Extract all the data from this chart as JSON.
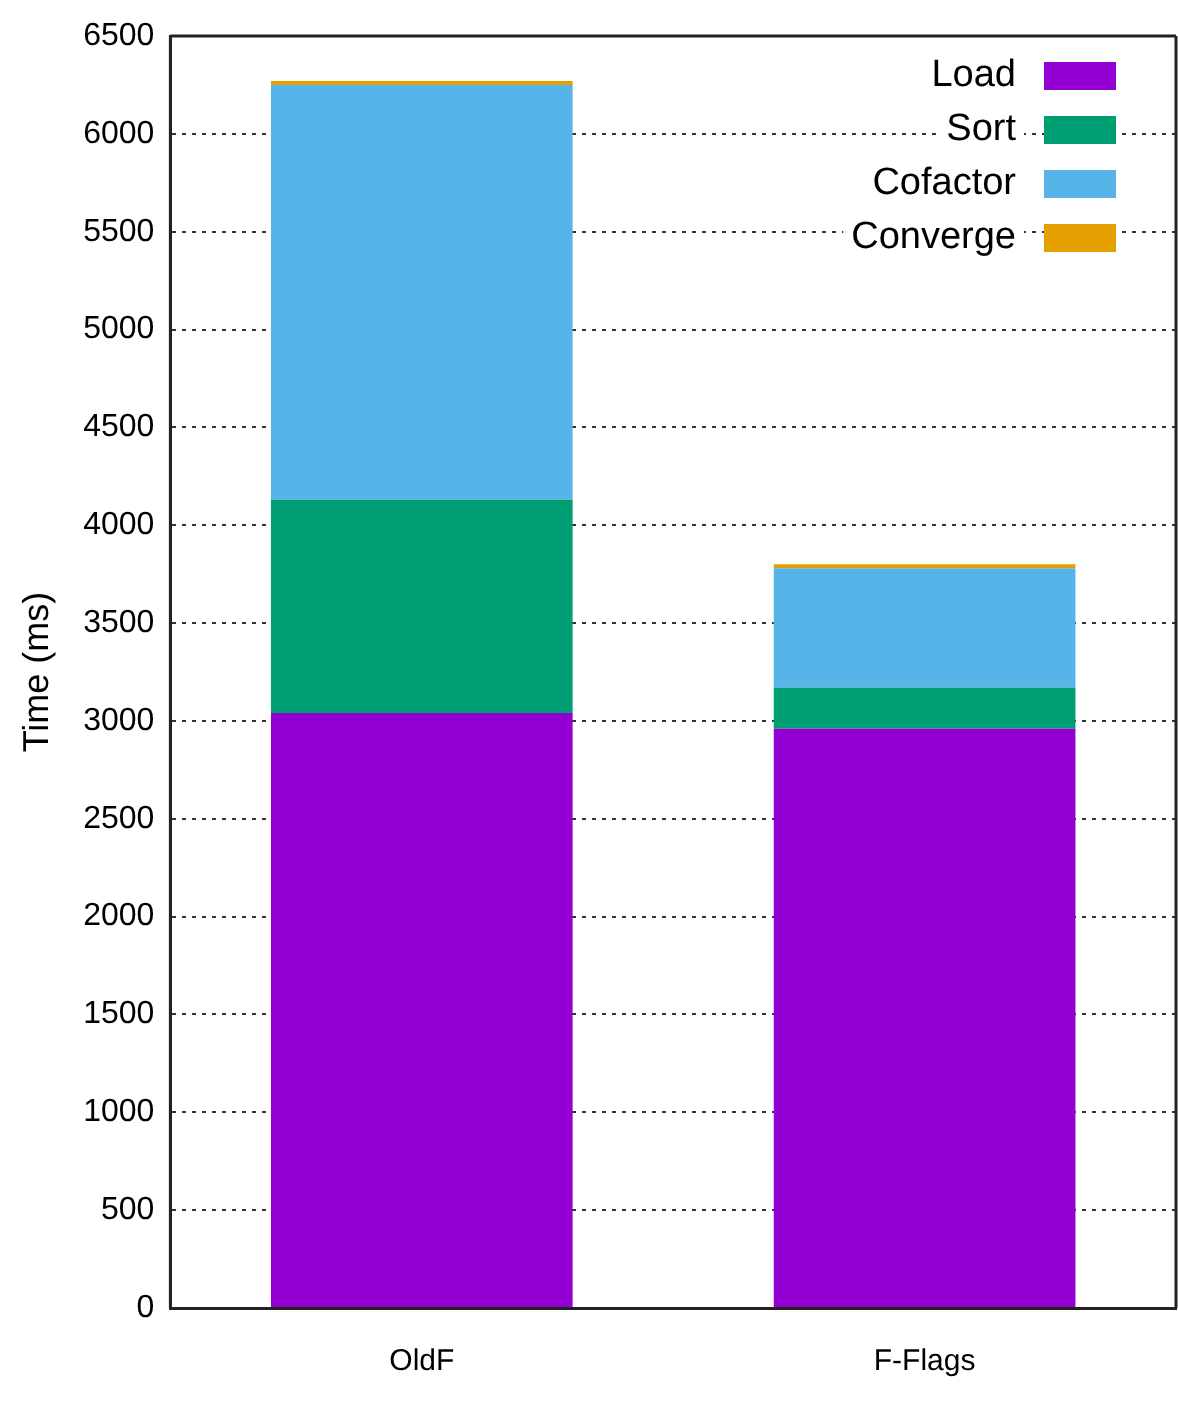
{
  "chart_data": {
    "type": "bar",
    "ylabel": "Time (ms)",
    "categories": [
      "OldF",
      "F-Flags"
    ],
    "stacked": true,
    "series": [
      {
        "name": "Load",
        "color": "#9400d3",
        "values": [
          3040,
          2960
        ]
      },
      {
        "name": "Sort",
        "color": "#009e73",
        "values": [
          1090,
          210
        ]
      },
      {
        "name": "Cofactor",
        "color": "#56b4e9",
        "values": [
          2120,
          610
        ]
      },
      {
        "name": "Converge",
        "color": "#e69f00",
        "values": [
          20,
          20
        ]
      }
    ],
    "ylim": [
      0,
      6500
    ],
    "yticks": [
      0,
      500,
      1000,
      1500,
      2000,
      2500,
      3000,
      3500,
      4000,
      4500,
      5000,
      5500,
      6000,
      6500
    ],
    "grid": "y",
    "legend": "top right"
  }
}
